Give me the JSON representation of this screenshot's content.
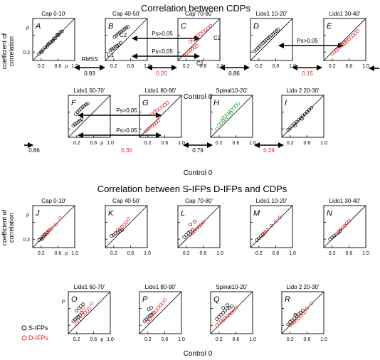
{
  "sections": [
    {
      "title": "Correlation between CDPs"
    },
    {
      "title": "Correlation between S-IFPs D-IFPs and CDPs"
    }
  ],
  "y_label_line1": "coefficient of",
  "y_label_line2": "correlation",
  "x_label": "Control 0",
  "rho": "ρ",
  "tick_labels": [
    "0.2",
    "0.6",
    "1.0"
  ],
  "rmss_label": "RMSS",
  "ps_labels": {
    "gt": "Ps>0.05",
    "lt": "Ps<0.05"
  },
  "cluster_labels": {
    "c1": "C1",
    "c2": "C2"
  },
  "rmss_values": [
    {
      "value": "0.93",
      "color": "#000000"
    },
    {
      "value": "0.20",
      "color": "#e8251f"
    },
    {
      "value": "0.86",
      "color": "#000000"
    },
    {
      "value": "0.15",
      "color": "#e8251f"
    },
    {
      "value": "0.86",
      "color": "#000000"
    },
    {
      "value": "0.30",
      "color": "#e8251f"
    },
    {
      "value": "0.79",
      "color": "#000000"
    },
    {
      "value": "0.29",
      "color": "#e8251f"
    }
  ],
  "legend": [
    {
      "label": "S-IFPs",
      "color": "#000000"
    },
    {
      "label": "D-IFPs",
      "color": "#e8251f"
    }
  ],
  "colors": {
    "black": "#000000",
    "red": "#e8251f",
    "green": "#1ea23a"
  },
  "chart_data": [
    {
      "type": "scatter",
      "letter": "A",
      "title": "Cap 0-10'",
      "xlim": [
        0,
        1
      ],
      "ylim": [
        0,
        1
      ],
      "xlabel": "Control 0",
      "ylabel": "coefficient of correlation",
      "series": [
        {
          "color": "#000000",
          "x": [
            0.15,
            0.2,
            0.25,
            0.3,
            0.34,
            0.38,
            0.42,
            0.46,
            0.5,
            0.54,
            0.58,
            0.62,
            0.66,
            0.7,
            0.22,
            0.36,
            0.48,
            0.6
          ],
          "y": [
            0.16,
            0.21,
            0.26,
            0.31,
            0.33,
            0.39,
            0.43,
            0.45,
            0.52,
            0.53,
            0.6,
            0.61,
            0.68,
            0.69,
            0.2,
            0.38,
            0.47,
            0.62
          ]
        }
      ]
    },
    {
      "type": "scatter",
      "letter": "B",
      "title": "Cap 40-50'",
      "xlim": [
        0,
        1
      ],
      "ylim": [
        0,
        1
      ],
      "series": [
        {
          "color": "#000000",
          "x": [
            0.12,
            0.16,
            0.2,
            0.24,
            0.28,
            0.32,
            0.36,
            0.22,
            0.26,
            0.3,
            0.34,
            0.38,
            0.42,
            0.46,
            0.5,
            0.54
          ],
          "y": [
            0.24,
            0.27,
            0.29,
            0.33,
            0.35,
            0.37,
            0.42,
            0.56,
            0.59,
            0.63,
            0.66,
            0.69,
            0.72,
            0.75,
            0.78,
            0.8
          ]
        }
      ]
    },
    {
      "type": "scatter",
      "letter": "C",
      "title": "Cap 70-80'",
      "xlim": [
        0,
        1
      ],
      "ylim": [
        0,
        1
      ],
      "series": [
        {
          "color": "#e8251f",
          "x": [
            0.15,
            0.2,
            0.25,
            0.3,
            0.35,
            0.4,
            0.45,
            0.3,
            0.36,
            0.42,
            0.48,
            0.54,
            0.6,
            0.66,
            0.72,
            0.78
          ],
          "y": [
            0.12,
            0.16,
            0.2,
            0.24,
            0.28,
            0.31,
            0.35,
            0.45,
            0.5,
            0.55,
            0.6,
            0.64,
            0.69,
            0.73,
            0.77,
            0.82
          ]
        }
      ]
    },
    {
      "type": "scatter",
      "letter": "D",
      "title": "Lido1 10-20'",
      "xlim": [
        0,
        1
      ],
      "ylim": [
        0,
        1
      ],
      "series": [
        {
          "color": "#000000",
          "x": [
            0.1,
            0.14,
            0.18,
            0.22,
            0.26,
            0.3,
            0.34,
            0.38,
            0.42,
            0.46,
            0.5,
            0.54,
            0.58,
            0.62,
            0.66
          ],
          "y": [
            0.22,
            0.26,
            0.3,
            0.34,
            0.38,
            0.42,
            0.46,
            0.49,
            0.53,
            0.56,
            0.6,
            0.63,
            0.67,
            0.7,
            0.74
          ]
        }
      ]
    },
    {
      "type": "scatter",
      "letter": "E",
      "title": "Lido1 30-40'",
      "xlim": [
        0,
        1
      ],
      "ylim": [
        0,
        1
      ],
      "series": [
        {
          "color": "#e8251f",
          "x": [
            0.2,
            0.25,
            0.3,
            0.35,
            0.4,
            0.45,
            0.5,
            0.55,
            0.6,
            0.65,
            0.7,
            0.75,
            0.8,
            0.42,
            0.52
          ],
          "y": [
            0.16,
            0.2,
            0.24,
            0.28,
            0.33,
            0.37,
            0.41,
            0.46,
            0.51,
            0.55,
            0.6,
            0.65,
            0.7,
            0.4,
            0.44
          ]
        }
      ]
    },
    {
      "type": "scatter",
      "letter": "F",
      "title": "Lido1 60-70'",
      "xlim": [
        0,
        1
      ],
      "ylim": [
        0,
        1
      ],
      "series": [
        {
          "color": "#000000",
          "x": [
            0.12,
            0.16,
            0.2,
            0.24,
            0.28,
            0.32,
            0.18,
            0.22,
            0.26,
            0.3,
            0.34,
            0.38,
            0.42,
            0.46
          ],
          "y": [
            0.28,
            0.31,
            0.34,
            0.37,
            0.4,
            0.43,
            0.55,
            0.6,
            0.64,
            0.68,
            0.72,
            0.75,
            0.78,
            0.8
          ]
        }
      ]
    },
    {
      "type": "scatter",
      "letter": "G",
      "title": "Lido1 80-90'",
      "xlim": [
        0,
        1
      ],
      "ylim": [
        0,
        1
      ],
      "series": [
        {
          "color": "#e8251f",
          "x": [
            0.15,
            0.2,
            0.25,
            0.3,
            0.35,
            0.4,
            0.45,
            0.3,
            0.36,
            0.42,
            0.48,
            0.54,
            0.6,
            0.66
          ],
          "y": [
            0.14,
            0.19,
            0.23,
            0.27,
            0.31,
            0.35,
            0.39,
            0.55,
            0.6,
            0.64,
            0.69,
            0.73,
            0.77,
            0.82
          ]
        }
      ]
    },
    {
      "type": "scatter",
      "letter": "H",
      "title": "Spinal10-20'",
      "xlim": [
        0,
        1
      ],
      "ylim": [
        0,
        1
      ],
      "series": [
        {
          "color": "#1ea23a",
          "x": [
            0.15,
            0.2,
            0.25,
            0.3,
            0.35,
            0.4,
            0.45,
            0.5,
            0.55,
            0.6,
            0.65,
            0.28,
            0.38,
            0.48
          ],
          "y": [
            0.2,
            0.3,
            0.35,
            0.4,
            0.5,
            0.55,
            0.6,
            0.65,
            0.7,
            0.75,
            0.8,
            0.45,
            0.42,
            0.58
          ]
        }
      ]
    },
    {
      "type": "scatter",
      "letter": "I",
      "title": "Lido 2 20-30'",
      "xlim": [
        0,
        1
      ],
      "ylim": [
        0,
        1
      ],
      "series": [
        {
          "color": "#000000",
          "x": [
            0.15,
            0.2,
            0.25,
            0.3,
            0.35,
            0.4,
            0.45,
            0.5,
            0.55,
            0.6,
            0.65,
            0.7,
            0.32,
            0.48
          ],
          "y": [
            0.18,
            0.22,
            0.27,
            0.32,
            0.36,
            0.41,
            0.46,
            0.51,
            0.55,
            0.6,
            0.65,
            0.7,
            0.28,
            0.44
          ]
        }
      ]
    },
    {
      "type": "scatter",
      "letter": "J",
      "title": "Cap 0-10'",
      "xlim": [
        0,
        1
      ],
      "ylim": [
        0,
        1
      ],
      "series": [
        {
          "name": "S-IFPs",
          "color": "#000000",
          "x": [
            0.15,
            0.2,
            0.25,
            0.3,
            0.35,
            0.22,
            0.28
          ],
          "y": [
            0.18,
            0.22,
            0.27,
            0.32,
            0.36,
            0.2,
            0.3
          ]
        },
        {
          "name": "D-IFPs",
          "color": "#e8251f",
          "x": [
            0.25,
            0.3,
            0.35,
            0.4,
            0.45,
            0.55,
            0.65,
            0.38
          ],
          "y": [
            0.24,
            0.3,
            0.35,
            0.42,
            0.46,
            0.55,
            0.7,
            0.4
          ]
        }
      ]
    },
    {
      "type": "scatter",
      "letter": "K",
      "title": "Cap 40-50'",
      "xlim": [
        0,
        1
      ],
      "ylim": [
        0,
        1
      ],
      "series": [
        {
          "name": "S-IFPs",
          "color": "#000000",
          "x": [
            0.15,
            0.2,
            0.25,
            0.3,
            0.35,
            0.4
          ],
          "y": [
            0.28,
            0.3,
            0.34,
            0.37,
            0.4,
            0.42
          ]
        },
        {
          "name": "D-IFPs",
          "color": "#e8251f",
          "x": [
            0.25,
            0.3,
            0.35,
            0.45,
            0.5,
            0.55,
            0.4
          ],
          "y": [
            0.35,
            0.42,
            0.45,
            0.55,
            0.6,
            0.68,
            0.5
          ]
        }
      ]
    },
    {
      "type": "scatter",
      "letter": "L",
      "title": "Cap 70-80'",
      "xlim": [
        0,
        1
      ],
      "ylim": [
        0,
        1
      ],
      "series": [
        {
          "name": "S-IFPs",
          "color": "#000000",
          "x": [
            0.15,
            0.2,
            0.25,
            0.3,
            0.35,
            0.3,
            0.4
          ],
          "y": [
            0.25,
            0.3,
            0.35,
            0.38,
            0.42,
            0.55,
            0.62
          ]
        },
        {
          "name": "D-IFPs",
          "color": "#e8251f",
          "x": [
            0.3,
            0.35,
            0.45,
            0.5,
            0.55,
            0.6,
            0.4
          ],
          "y": [
            0.3,
            0.35,
            0.45,
            0.5,
            0.55,
            0.6,
            0.4
          ]
        }
      ]
    },
    {
      "type": "scatter",
      "letter": "M",
      "title": "Lido1 10-20'",
      "xlim": [
        0,
        1
      ],
      "ylim": [
        0,
        1
      ],
      "series": [
        {
          "name": "S-IFPs",
          "color": "#000000",
          "x": [
            0.15,
            0.2,
            0.25,
            0.3,
            0.35
          ],
          "y": [
            0.18,
            0.22,
            0.27,
            0.32,
            0.36
          ]
        },
        {
          "name": "D-IFPs",
          "color": "#e8251f",
          "x": [
            0.3,
            0.35,
            0.4,
            0.5,
            0.6,
            0.7
          ],
          "y": [
            0.3,
            0.36,
            0.42,
            0.52,
            0.62,
            0.72
          ]
        }
      ]
    },
    {
      "type": "scatter",
      "letter": "N",
      "title": "Lido1 30-40'",
      "xlim": [
        0,
        1
      ],
      "ylim": [
        0,
        1
      ],
      "series": [
        {
          "name": "S-IFPs",
          "color": "#000000",
          "x": [
            0.15,
            0.2,
            0.25,
            0.3,
            0.35,
            0.4
          ],
          "y": [
            0.2,
            0.24,
            0.28,
            0.32,
            0.36,
            0.4
          ]
        },
        {
          "name": "D-IFPs",
          "color": "#e8251f",
          "x": [
            0.3,
            0.35,
            0.4,
            0.45,
            0.5,
            0.55,
            0.6
          ],
          "y": [
            0.32,
            0.37,
            0.43,
            0.48,
            0.52,
            0.58,
            0.63
          ]
        }
      ]
    },
    {
      "type": "scatter",
      "letter": "O",
      "title": "Lido1 60-70'",
      "xlim": [
        0,
        1
      ],
      "ylim": [
        0,
        1
      ],
      "series": [
        {
          "name": "S-IFPs",
          "color": "#000000",
          "x": [
            0.12,
            0.16,
            0.2,
            0.24,
            0.28,
            0.32,
            0.2,
            0.25,
            0.3,
            0.35
          ],
          "y": [
            0.3,
            0.34,
            0.38,
            0.4,
            0.44,
            0.5,
            0.55,
            0.6,
            0.65,
            0.7
          ]
        },
        {
          "name": "D-IFPs",
          "color": "#e8251f",
          "x": [
            0.2,
            0.25,
            0.3,
            0.35,
            0.4,
            0.45,
            0.5,
            0.35,
            0.55
          ],
          "y": [
            0.25,
            0.3,
            0.35,
            0.45,
            0.5,
            0.55,
            0.6,
            0.62,
            0.72
          ]
        }
      ]
    },
    {
      "type": "scatter",
      "letter": "P",
      "title": "Lido1 80-90'",
      "xlim": [
        0,
        1
      ],
      "ylim": [
        0,
        1
      ],
      "series": [
        {
          "name": "S-IFPs",
          "color": "#000000",
          "x": [
            0.12,
            0.16,
            0.2,
            0.24,
            0.28,
            0.32,
            0.22,
            0.28
          ],
          "y": [
            0.3,
            0.34,
            0.38,
            0.42,
            0.45,
            0.48,
            0.58,
            0.62
          ]
        },
        {
          "name": "D-IFPs",
          "color": "#e8251f",
          "x": [
            0.2,
            0.25,
            0.3,
            0.35,
            0.4,
            0.45,
            0.5,
            0.55,
            0.6
          ],
          "y": [
            0.28,
            0.35,
            0.42,
            0.5,
            0.55,
            0.62,
            0.68,
            0.72,
            0.8
          ]
        }
      ]
    },
    {
      "type": "scatter",
      "letter": "Q",
      "title": "Spinal10-20'",
      "xlim": [
        0,
        1
      ],
      "ylim": [
        0,
        1
      ],
      "series": [
        {
          "name": "S-IFPs",
          "color": "#000000",
          "x": [
            0.15,
            0.2,
            0.25,
            0.3,
            0.35,
            0.4,
            0.45,
            0.5,
            0.3,
            0.4
          ],
          "y": [
            0.35,
            0.4,
            0.45,
            0.5,
            0.55,
            0.6,
            0.62,
            0.65,
            0.62,
            0.68
          ]
        },
        {
          "name": "D-IFPs",
          "color": "#e8251f",
          "x": [
            0.15,
            0.2,
            0.25,
            0.3,
            0.35,
            0.4,
            0.45,
            0.5,
            0.55,
            0.6
          ],
          "y": [
            0.2,
            0.25,
            0.3,
            0.32,
            0.38,
            0.42,
            0.45,
            0.5,
            0.55,
            0.62
          ]
        }
      ]
    },
    {
      "type": "scatter",
      "letter": "R",
      "title": "Lido 2 20-30'",
      "xlim": [
        0,
        1
      ],
      "ylim": [
        0,
        1
      ],
      "series": [
        {
          "name": "S-IFPs",
          "color": "#000000",
          "x": [
            0.15,
            0.2,
            0.25,
            0.3,
            0.35,
            0.4,
            0.45,
            0.5,
            0.32
          ],
          "y": [
            0.22,
            0.28,
            0.32,
            0.36,
            0.42,
            0.46,
            0.5,
            0.55,
            0.45
          ]
        },
        {
          "name": "D-IFPs",
          "color": "#e8251f",
          "x": [
            0.2,
            0.25,
            0.3,
            0.35,
            0.4,
            0.45,
            0.5,
            0.55,
            0.6,
            0.7
          ],
          "y": [
            0.2,
            0.24,
            0.28,
            0.32,
            0.36,
            0.42,
            0.48,
            0.52,
            0.6,
            0.72
          ]
        }
      ]
    }
  ]
}
